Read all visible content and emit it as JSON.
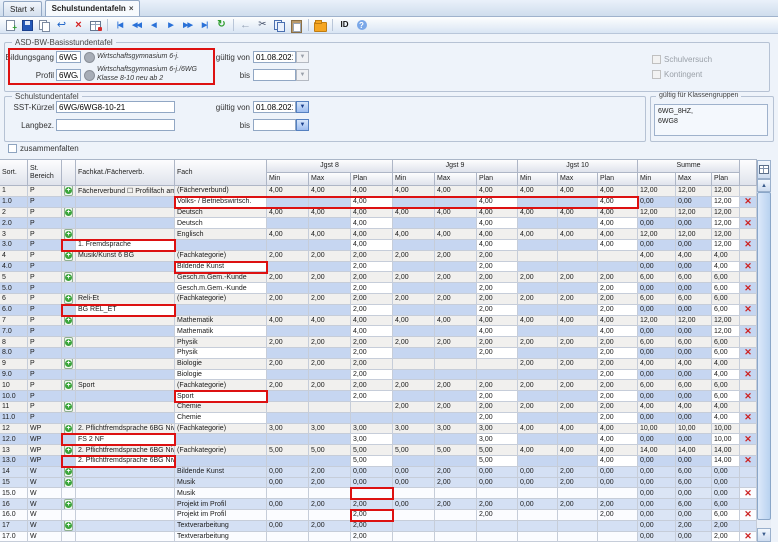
{
  "tabs": [
    {
      "label": "Start",
      "close": "×",
      "active": false
    },
    {
      "label": "Schulstundentafeln",
      "close": "×",
      "active": true
    }
  ],
  "toolbar": {
    "groups": [
      [
        "new-record",
        "save",
        "copy-record",
        "undo",
        "delete",
        "edit-grid"
      ],
      [
        "nav-first",
        "nav-prev-fast",
        "nav-prev",
        "nav-next",
        "nav-next-fast",
        "nav-last",
        "refresh"
      ],
      [
        "back-arrow",
        "cut",
        "copy",
        "paste"
      ],
      [
        "folder"
      ],
      [
        "id-button",
        "help"
      ]
    ]
  },
  "basis": {
    "legend": "ASD-BW-Basisstundentafel",
    "bildungsgang_label": "Bildungsgang",
    "bildungsgang_value": "6WG",
    "bildungsgang_desc": "Wirtschaftsgymnasium 6-j.",
    "profil_label": "Profil",
    "profil_value": "6WG/6",
    "profil_desc": "Wirtschaftsgymnasium 6-j./6WG Klasse 8-10 neu ab 2",
    "gueltig_von_label": "gültig von",
    "gueltig_von_value": "01.08.2021",
    "bis_label": "bis",
    "bis_value": ""
  },
  "sst": {
    "legend": "Schulstundentafel",
    "kuerzel_label": "SST-Kürzel",
    "kuerzel_value": "6WG/6WG8-10-21",
    "langbez_label": "Langbez.",
    "langbez_value": "",
    "gueltig_von_label": "gültig von",
    "gueltig_von_value": "01.08.2021",
    "bis_label": "bis",
    "bis_value": ""
  },
  "options": {
    "zusammenfalten": "zusammenfalten",
    "schulversuch": "Schulversuch",
    "kontingent": "Kontingent"
  },
  "klassengruppen": {
    "legend": "gültig für Klassengruppen",
    "value": "6WG_8HZ,\n6WG8"
  },
  "table": {
    "headers": {
      "sort": "Sort.",
      "bereich": "St. Bereich",
      "fachkat": "Fachkat./Fächerverb.",
      "fach": "Fach",
      "groups": [
        "Jgst 8",
        "Jgst 9",
        "Jgst 10",
        "Summe"
      ],
      "sub": [
        "Min",
        "Max",
        "Plan"
      ]
    },
    "rows": [
      {
        "sort": "1",
        "ber": "P",
        "add": true,
        "fachkat": "Fächerverbund ☐ Profilfach am 6WG...",
        "fach": "(Fächerverbund)",
        "j8": [
          "4,00",
          "4,00",
          "4,00"
        ],
        "j9": [
          "4,00",
          "4,00",
          "4,00"
        ],
        "j10": [
          "4,00",
          "4,00",
          "4,00"
        ],
        "sum": [
          "12,00",
          "12,00",
          "12,00"
        ],
        "del": false,
        "tint": "g"
      },
      {
        "sort": "1.0",
        "ber": "P",
        "add": false,
        "fachkat": "",
        "fach": "Volks- / Betriebswirtsch.",
        "j8": [
          "",
          "",
          "4,00"
        ],
        "j9": [
          "",
          "",
          "4,00"
        ],
        "j10": [
          "",
          "",
          "4,00"
        ],
        "sum": [
          "0,00",
          "0,00",
          "12,00"
        ],
        "del": true,
        "tint": "b"
      },
      {
        "sort": "2",
        "ber": "P",
        "add": true,
        "fachkat": "",
        "fach": "Deutsch",
        "j8": [
          "4,00",
          "4,00",
          "4,00"
        ],
        "j9": [
          "4,00",
          "4,00",
          "4,00"
        ],
        "j10": [
          "4,00",
          "4,00",
          "4,00"
        ],
        "sum": [
          "12,00",
          "12,00",
          "12,00"
        ],
        "del": false,
        "tint": "g"
      },
      {
        "sort": "2.0",
        "ber": "P",
        "add": false,
        "fachkat": "",
        "fach": "Deutsch",
        "j8": [
          "",
          "",
          "4,00"
        ],
        "j9": [
          "",
          "",
          "4,00"
        ],
        "j10": [
          "",
          "",
          "4,00"
        ],
        "sum": [
          "0,00",
          "0,00",
          "12,00"
        ],
        "del": true,
        "tint": "b"
      },
      {
        "sort": "3",
        "ber": "P",
        "add": true,
        "fachkat": "",
        "fach": "Englisch",
        "j8": [
          "4,00",
          "4,00",
          "4,00"
        ],
        "j9": [
          "4,00",
          "4,00",
          "4,00"
        ],
        "j10": [
          "4,00",
          "4,00",
          "4,00"
        ],
        "sum": [
          "12,00",
          "12,00",
          "12,00"
        ],
        "del": false,
        "tint": "g"
      },
      {
        "sort": "3.0",
        "ber": "P",
        "add": false,
        "fachkat": "1. Fremdsprache",
        "fach": "",
        "j8": [
          "",
          "",
          "4,00"
        ],
        "j9": [
          "",
          "",
          "4,00"
        ],
        "j10": [
          "",
          "",
          "4,00"
        ],
        "sum": [
          "0,00",
          "0,00",
          "12,00"
        ],
        "del": true,
        "tint": "b"
      },
      {
        "sort": "4",
        "ber": "P",
        "add": true,
        "fachkat": "Musik/Kunst 6 BG",
        "fach": "(Fachkategorie)",
        "j8": [
          "2,00",
          "2,00",
          "2,00"
        ],
        "j9": [
          "2,00",
          "2,00",
          "2,00"
        ],
        "j10": [
          "",
          "",
          ""
        ],
        "sum": [
          "4,00",
          "4,00",
          "4,00"
        ],
        "del": false,
        "tint": "g"
      },
      {
        "sort": "4.0",
        "ber": "P",
        "add": false,
        "fachkat": "",
        "fach": "Bildende Kunst",
        "j8": [
          "",
          "",
          "2,00"
        ],
        "j9": [
          "",
          "",
          "2,00"
        ],
        "j10": [
          "",
          "",
          ""
        ],
        "sum": [
          "0,00",
          "0,00",
          "4,00"
        ],
        "del": true,
        "tint": "b"
      },
      {
        "sort": "5",
        "ber": "P",
        "add": true,
        "fachkat": "",
        "fach": "Gesch.m.Gem.-Kunde",
        "j8": [
          "2,00",
          "2,00",
          "2,00"
        ],
        "j9": [
          "2,00",
          "2,00",
          "2,00"
        ],
        "j10": [
          "2,00",
          "2,00",
          "2,00"
        ],
        "sum": [
          "6,00",
          "6,00",
          "6,00"
        ],
        "del": false,
        "tint": "g"
      },
      {
        "sort": "5.0",
        "ber": "P",
        "add": false,
        "fachkat": "",
        "fach": "Gesch.m.Gem.-Kunde",
        "j8": [
          "",
          "",
          "2,00"
        ],
        "j9": [
          "",
          "",
          "2,00"
        ],
        "j10": [
          "",
          "",
          "2,00"
        ],
        "sum": [
          "0,00",
          "0,00",
          "6,00"
        ],
        "del": true,
        "tint": "b"
      },
      {
        "sort": "6",
        "ber": "P",
        "add": true,
        "fachkat": "Reli-Et",
        "fach": "(Fachkategorie)",
        "j8": [
          "2,00",
          "2,00",
          "2,00"
        ],
        "j9": [
          "2,00",
          "2,00",
          "2,00"
        ],
        "j10": [
          "2,00",
          "2,00",
          "2,00"
        ],
        "sum": [
          "6,00",
          "6,00",
          "6,00"
        ],
        "del": false,
        "tint": "g"
      },
      {
        "sort": "6.0",
        "ber": "P",
        "add": false,
        "fachkat": "BG REL_ET",
        "fach": "",
        "j8": [
          "",
          "",
          "2,00"
        ],
        "j9": [
          "",
          "",
          "2,00"
        ],
        "j10": [
          "",
          "",
          "2,00"
        ],
        "sum": [
          "0,00",
          "0,00",
          "6,00"
        ],
        "del": true,
        "tint": "b"
      },
      {
        "sort": "7",
        "ber": "P",
        "add": true,
        "fachkat": "",
        "fach": "Mathematik",
        "j8": [
          "4,00",
          "4,00",
          "4,00"
        ],
        "j9": [
          "4,00",
          "4,00",
          "4,00"
        ],
        "j10": [
          "4,00",
          "4,00",
          "4,00"
        ],
        "sum": [
          "12,00",
          "12,00",
          "12,00"
        ],
        "del": false,
        "tint": "g"
      },
      {
        "sort": "7.0",
        "ber": "P",
        "add": false,
        "fachkat": "",
        "fach": "Mathematik",
        "j8": [
          "",
          "",
          "4,00"
        ],
        "j9": [
          "",
          "",
          "4,00"
        ],
        "j10": [
          "",
          "",
          "4,00"
        ],
        "sum": [
          "0,00",
          "0,00",
          "12,00"
        ],
        "del": true,
        "tint": "b"
      },
      {
        "sort": "8",
        "ber": "P",
        "add": true,
        "fachkat": "",
        "fach": "Physik",
        "j8": [
          "2,00",
          "2,00",
          "2,00"
        ],
        "j9": [
          "2,00",
          "2,00",
          "2,00"
        ],
        "j10": [
          "2,00",
          "2,00",
          "2,00"
        ],
        "sum": [
          "6,00",
          "6,00",
          "6,00"
        ],
        "del": false,
        "tint": "g"
      },
      {
        "sort": "8.0",
        "ber": "P",
        "add": false,
        "fachkat": "",
        "fach": "Physik",
        "j8": [
          "",
          "",
          "2,00"
        ],
        "j9": [
          "",
          "",
          "2,00"
        ],
        "j10": [
          "",
          "",
          "2,00"
        ],
        "sum": [
          "0,00",
          "0,00",
          "6,00"
        ],
        "del": true,
        "tint": "b"
      },
      {
        "sort": "9",
        "ber": "P",
        "add": true,
        "fachkat": "",
        "fach": "Biologie",
        "j8": [
          "2,00",
          "2,00",
          "2,00"
        ],
        "j9": [
          "",
          "",
          ""
        ],
        "j10": [
          "2,00",
          "2,00",
          "2,00"
        ],
        "sum": [
          "4,00",
          "4,00",
          "4,00"
        ],
        "del": false,
        "tint": "g"
      },
      {
        "sort": "9.0",
        "ber": "P",
        "add": false,
        "fachkat": "",
        "fach": "Biologie",
        "j8": [
          "",
          "",
          "2,00"
        ],
        "j9": [
          "",
          "",
          ""
        ],
        "j10": [
          "",
          "",
          "2,00"
        ],
        "sum": [
          "0,00",
          "0,00",
          "4,00"
        ],
        "del": true,
        "tint": "b"
      },
      {
        "sort": "10",
        "ber": "P",
        "add": true,
        "fachkat": "Sport",
        "fach": "(Fachkategorie)",
        "j8": [
          "2,00",
          "2,00",
          "2,00"
        ],
        "j9": [
          "2,00",
          "2,00",
          "2,00"
        ],
        "j10": [
          "2,00",
          "2,00",
          "2,00"
        ],
        "sum": [
          "6,00",
          "6,00",
          "6,00"
        ],
        "del": false,
        "tint": "g"
      },
      {
        "sort": "10.0",
        "ber": "P",
        "add": false,
        "fachkat": "",
        "fach": "Sport",
        "j8": [
          "",
          "",
          "2,00"
        ],
        "j9": [
          "",
          "",
          "2,00"
        ],
        "j10": [
          "",
          "",
          "2,00"
        ],
        "sum": [
          "0,00",
          "0,00",
          "6,00"
        ],
        "del": true,
        "tint": "b"
      },
      {
        "sort": "11",
        "ber": "P",
        "add": true,
        "fachkat": "",
        "fach": "Chemie",
        "j8": [
          "",
          "",
          ""
        ],
        "j9": [
          "2,00",
          "2,00",
          "2,00"
        ],
        "j10": [
          "2,00",
          "2,00",
          "2,00"
        ],
        "sum": [
          "4,00",
          "4,00",
          "4,00"
        ],
        "del": false,
        "tint": "g"
      },
      {
        "sort": "11.0",
        "ber": "P",
        "add": false,
        "fachkat": "",
        "fach": "Chemie",
        "j8": [
          "",
          "",
          ""
        ],
        "j9": [
          "",
          "",
          "2,00"
        ],
        "j10": [
          "",
          "",
          "2,00"
        ],
        "sum": [
          "0,00",
          "0,00",
          "4,00"
        ],
        "del": true,
        "tint": "b"
      },
      {
        "sort": "12",
        "ber": "WP",
        "add": true,
        "fachkat": "2. Pflichtfremdsprache 6BG Niveau F",
        "fach": "(Fachkategorie)",
        "j8": [
          "3,00",
          "3,00",
          "3,00"
        ],
        "j9": [
          "3,00",
          "3,00",
          "3,00"
        ],
        "j10": [
          "4,00",
          "4,00",
          "4,00"
        ],
        "sum": [
          "10,00",
          "10,00",
          "10,00"
        ],
        "del": false,
        "tint": "g"
      },
      {
        "sort": "12.0",
        "ber": "WP",
        "add": false,
        "fachkat": "FS 2 NF",
        "fach": "",
        "j8": [
          "",
          "",
          "3,00"
        ],
        "j9": [
          "",
          "",
          "3,00"
        ],
        "j10": [
          "",
          "",
          "4,00"
        ],
        "sum": [
          "0,00",
          "0,00",
          "10,00"
        ],
        "del": true,
        "tint": "b"
      },
      {
        "sort": "13",
        "ber": "WP",
        "add": true,
        "fachkat": "2. Pflichtfremdsprache 6BG Niveau N",
        "fach": "(Fachkategorie)",
        "j8": [
          "5,00",
          "5,00",
          "5,00"
        ],
        "j9": [
          "5,00",
          "5,00",
          "5,00"
        ],
        "j10": [
          "4,00",
          "4,00",
          "4,00"
        ],
        "sum": [
          "14,00",
          "14,00",
          "14,00"
        ],
        "del": false,
        "tint": "g"
      },
      {
        "sort": "13.0",
        "ber": "WP",
        "add": false,
        "fachkat": "2. Pflichtfremdsprache 6BG Niveau N",
        "fach": "",
        "j8": [
          "",
          "",
          "5,00"
        ],
        "j9": [
          "",
          "",
          "5,00"
        ],
        "j10": [
          "",
          "",
          "4,00"
        ],
        "sum": [
          "0,00",
          "0,00",
          "14,00"
        ],
        "del": true,
        "tint": "b"
      },
      {
        "sort": "14",
        "ber": "W",
        "add": true,
        "fachkat": "",
        "fach": "Bildende Kunst",
        "j8": [
          "0,00",
          "2,00",
          "0,00"
        ],
        "j9": [
          "0,00",
          "2,00",
          "0,00"
        ],
        "j10": [
          "0,00",
          "2,00",
          "0,00"
        ],
        "sum": [
          "0,00",
          "6,00",
          "0,00"
        ],
        "del": false,
        "tint": "mb"
      },
      {
        "sort": "15",
        "ber": "W",
        "add": true,
        "fachkat": "",
        "fach": "Musik",
        "j8": [
          "0,00",
          "2,00",
          "0,00"
        ],
        "j9": [
          "0,00",
          "2,00",
          "0,00"
        ],
        "j10": [
          "0,00",
          "2,00",
          "0,00"
        ],
        "sum": [
          "0,00",
          "6,00",
          "0,00"
        ],
        "del": false,
        "tint": "mb"
      },
      {
        "sort": "15.0",
        "ber": "W",
        "add": false,
        "fachkat": "",
        "fach": "Musik",
        "j8": [
          "",
          "",
          ""
        ],
        "j9": [
          "",
          "",
          ""
        ],
        "j10": [
          "",
          "",
          ""
        ],
        "sum": [
          "0,00",
          "0,00",
          "0,00"
        ],
        "del": true,
        "tint": "w"
      },
      {
        "sort": "16",
        "ber": "W",
        "add": true,
        "fachkat": "",
        "fach": "Projekt im Profil",
        "j8": [
          "0,00",
          "2,00",
          "2,00"
        ],
        "j9": [
          "0,00",
          "2,00",
          "2,00"
        ],
        "j10": [
          "0,00",
          "2,00",
          "2,00"
        ],
        "sum": [
          "0,00",
          "6,00",
          "6,00"
        ],
        "del": false,
        "tint": "mb"
      },
      {
        "sort": "16.0",
        "ber": "W",
        "add": false,
        "fachkat": "",
        "fach": "Projekt im Profil",
        "j8": [
          "",
          "",
          "2,00"
        ],
        "j9": [
          "",
          "",
          "2,00"
        ],
        "j10": [
          "",
          "",
          "2,00"
        ],
        "sum": [
          "0,00",
          "0,00",
          "6,00"
        ],
        "del": true,
        "tint": "w"
      },
      {
        "sort": "17",
        "ber": "W",
        "add": true,
        "fachkat": "",
        "fach": "Textverarbeitung",
        "j8": [
          "0,00",
          "2,00",
          "2,00"
        ],
        "j9": [
          "",
          "",
          ""
        ],
        "j10": [
          "",
          "",
          ""
        ],
        "sum": [
          "0,00",
          "2,00",
          "2,00"
        ],
        "del": false,
        "tint": "mb"
      },
      {
        "sort": "17.0",
        "ber": "W",
        "add": false,
        "fachkat": "",
        "fach": "Textverarbeitung",
        "j8": [
          "",
          "",
          "2,00"
        ],
        "j9": [
          "",
          "",
          ""
        ],
        "j10": [
          "",
          "",
          ""
        ],
        "sum": [
          "0,00",
          "0,00",
          "2,00"
        ],
        "del": true,
        "tint": "w"
      }
    ],
    "red_boxes": [
      {
        "row": 1,
        "from": "fach",
        "to": "j10_2"
      },
      {
        "row": 5,
        "from": "icon",
        "to": "fachkat"
      },
      {
        "row": 7,
        "from": "fach",
        "to": "fach"
      },
      {
        "row": 11,
        "from": "icon",
        "to": "fachkat"
      },
      {
        "row": 19,
        "from": "fach",
        "to": "fach"
      },
      {
        "row": 23,
        "from": "icon",
        "to": "fachkat"
      },
      {
        "row": 25,
        "from": "icon",
        "to": "fachkat"
      },
      {
        "row": 28,
        "from": "j8_2",
        "to": "j8_2"
      },
      {
        "row": 30,
        "from": "j8_2",
        "to": "j8_2"
      }
    ]
  }
}
